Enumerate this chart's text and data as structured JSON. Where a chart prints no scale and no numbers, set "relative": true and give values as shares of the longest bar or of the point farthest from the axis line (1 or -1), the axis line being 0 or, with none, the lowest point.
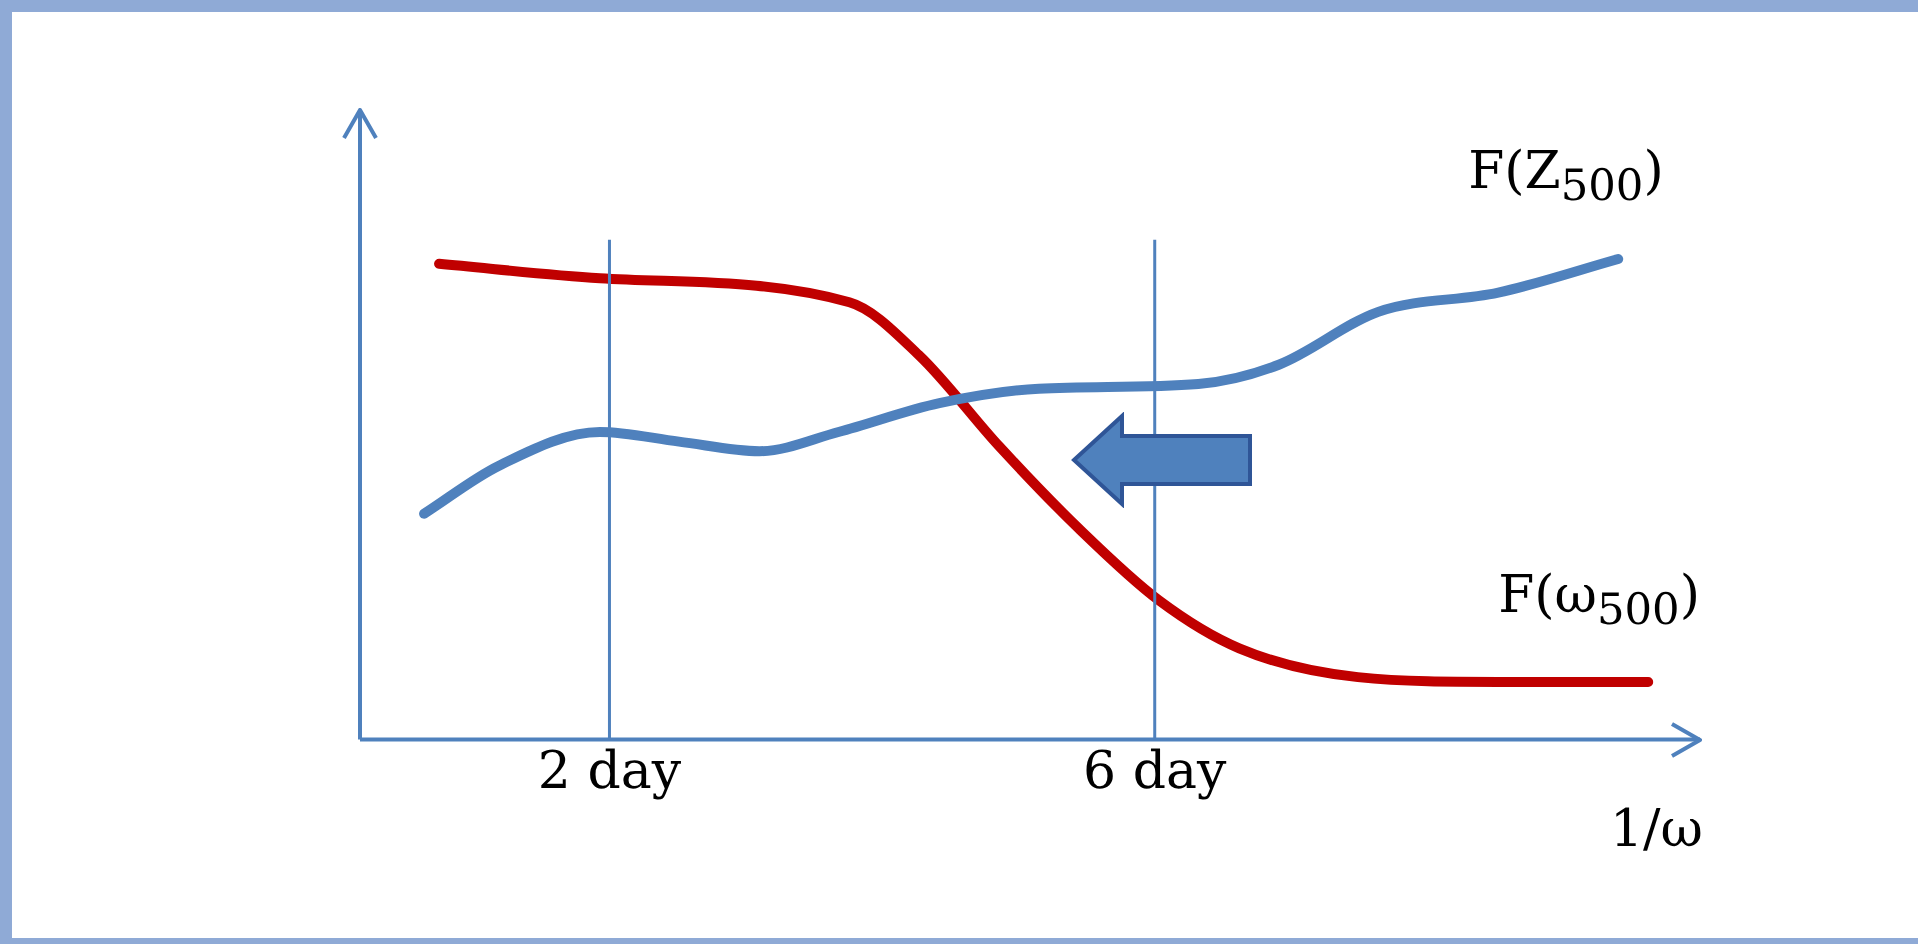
{
  "chart_data": {
    "type": "line",
    "relative": true,
    "xlabel": "1/ω",
    "xlim": [
      0.17,
      10
    ],
    "xticks": [
      {
        "value": 2,
        "label": "2 day"
      },
      {
        "value": 6,
        "label": "6 day"
      }
    ],
    "grid": false,
    "legend": false,
    "marker": "none",
    "line_style": "solid",
    "ref_lines": [
      {
        "axis": "x",
        "value": 2,
        "color": "#4f81bd"
      },
      {
        "axis": "x",
        "value": 6,
        "color": "#4f81bd"
      }
    ],
    "series": [
      {
        "name": "F(Z$_{500}$)",
        "color": "#4f81bd",
        "x": [
          0.64,
          1.19,
          1.93,
          2.51,
          3.1,
          3.68,
          4.42,
          5.15,
          6.32,
          6.91,
          7.64,
          8.52,
          9.4
        ],
        "values": [
          0.47,
          0.57,
          0.64,
          0.62,
          0.6,
          0.64,
          0.7,
          0.73,
          0.74,
          0.78,
          0.89,
          0.93,
          1.0
        ]
      },
      {
        "name": "F(ω$_{500}$)",
        "color": "#c00000",
        "x": [
          0.75,
          1.93,
          3.76,
          4.27,
          4.86,
          5.44,
          6.03,
          6.62,
          7.49,
          8.52,
          9.62
        ],
        "values": [
          0.99,
          0.96,
          0.91,
          0.8,
          0.61,
          0.44,
          0.29,
          0.19,
          0.13,
          0.12,
          0.12
        ]
      }
    ]
  }
}
